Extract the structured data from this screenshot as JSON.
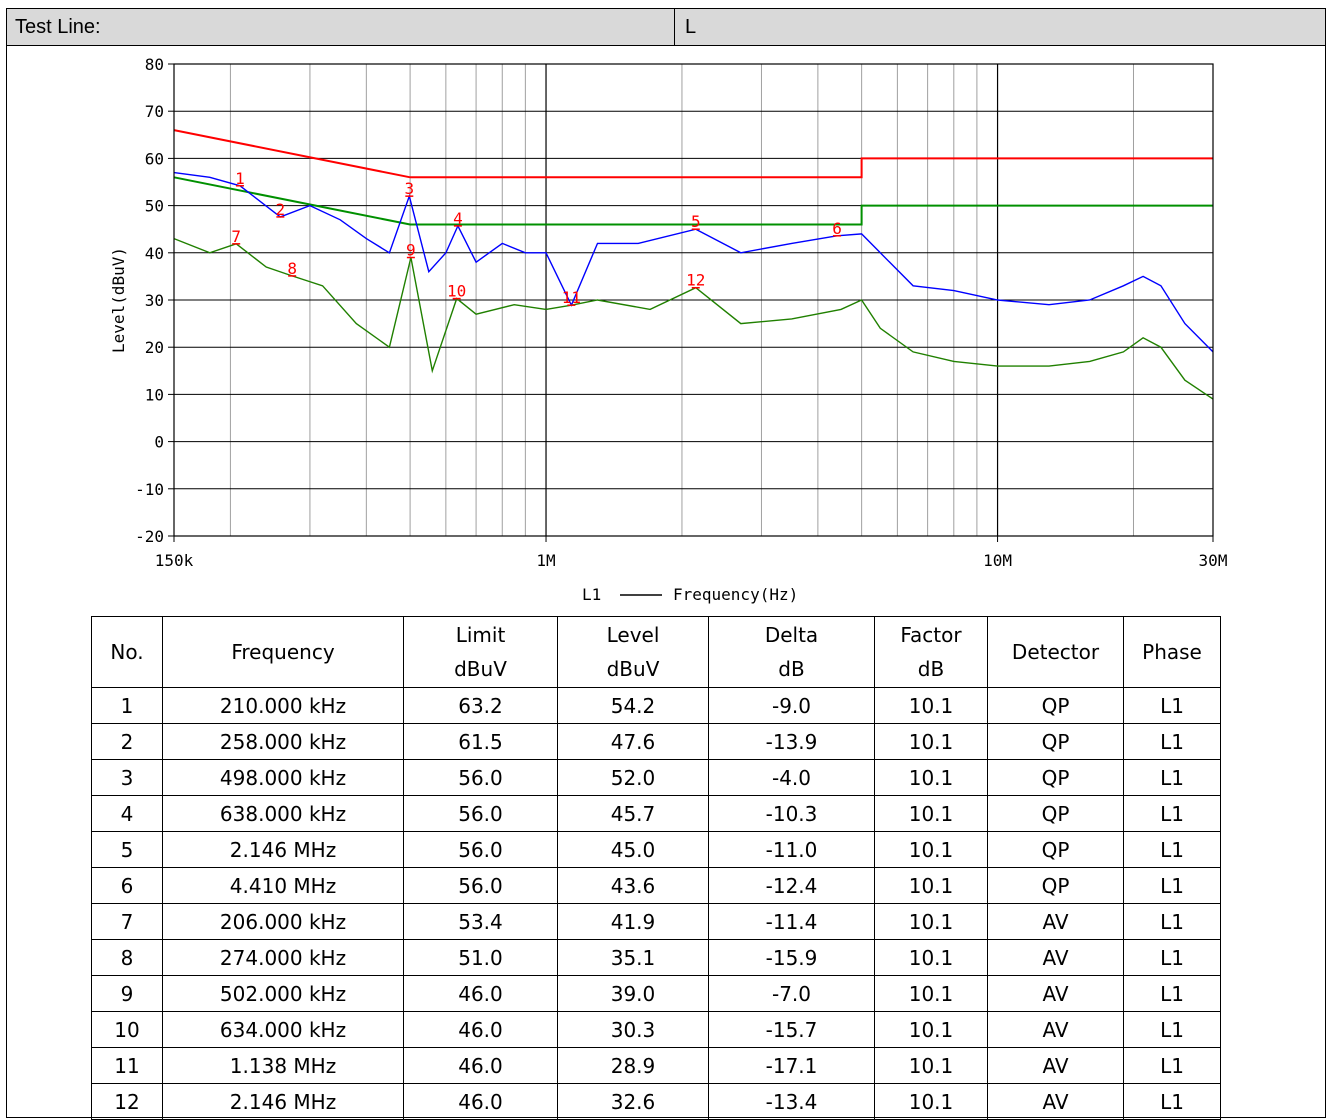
{
  "header": {
    "label": "Test Line:",
    "value": "L"
  },
  "chart_data": {
    "type": "line",
    "xscale": "log",
    "xlim": [
      150000,
      30000000
    ],
    "ylim": [
      -20,
      80
    ],
    "ylabel": "Level(dBuV)",
    "xlabel": "Frequency(Hz)",
    "legend_prefix": "L1",
    "x_ticks": [
      150000,
      1000000,
      10000000,
      30000000
    ],
    "x_tick_labels": [
      "150k",
      "1M",
      "10M",
      "30M"
    ],
    "y_ticks": [
      -20,
      -10,
      0,
      10,
      20,
      30,
      40,
      50,
      60,
      70,
      80
    ],
    "grid": true,
    "colors": {
      "qp_limit": "#ff0000",
      "av_limit": "#009000",
      "qp_trace": "#0000ff",
      "av_trace": "#208000",
      "marker": "#ff0000"
    },
    "series": [
      {
        "key": "qp_limit",
        "points": [
          [
            150000,
            66
          ],
          [
            500000,
            56
          ],
          [
            5000000,
            56
          ],
          [
            5000000,
            60
          ],
          [
            30000000,
            60
          ]
        ]
      },
      {
        "key": "av_limit",
        "points": [
          [
            150000,
            56
          ],
          [
            500000,
            46
          ],
          [
            5000000,
            46
          ],
          [
            5000000,
            50
          ],
          [
            30000000,
            50
          ]
        ]
      },
      {
        "key": "qp_trace",
        "points": [
          [
            150000,
            57
          ],
          [
            180000,
            56
          ],
          [
            210000,
            54.2
          ],
          [
            258000,
            47.6
          ],
          [
            300000,
            50
          ],
          [
            350000,
            47
          ],
          [
            400000,
            43
          ],
          [
            450000,
            40
          ],
          [
            498000,
            52
          ],
          [
            550000,
            36
          ],
          [
            600000,
            40
          ],
          [
            638000,
            45.7
          ],
          [
            700000,
            38
          ],
          [
            800000,
            42
          ],
          [
            900000,
            40
          ],
          [
            1000000,
            40
          ],
          [
            1138000,
            28.9
          ],
          [
            1300000,
            42
          ],
          [
            1600000,
            42
          ],
          [
            2146000,
            45
          ],
          [
            2700000,
            40
          ],
          [
            3500000,
            42
          ],
          [
            4410000,
            43.6
          ],
          [
            5000000,
            44
          ],
          [
            5500000,
            40
          ],
          [
            6500000,
            33
          ],
          [
            8000000,
            32
          ],
          [
            10000000,
            30
          ],
          [
            13000000,
            29
          ],
          [
            16000000,
            30
          ],
          [
            19000000,
            33
          ],
          [
            21000000,
            35
          ],
          [
            23000000,
            33
          ],
          [
            26000000,
            25
          ],
          [
            30000000,
            19
          ]
        ]
      },
      {
        "key": "av_trace",
        "points": [
          [
            150000,
            43
          ],
          [
            180000,
            40
          ],
          [
            206000,
            41.9
          ],
          [
            240000,
            37
          ],
          [
            274000,
            35.1
          ],
          [
            320000,
            33
          ],
          [
            380000,
            25
          ],
          [
            450000,
            20
          ],
          [
            502000,
            39
          ],
          [
            560000,
            15
          ],
          [
            634000,
            30.3
          ],
          [
            700000,
            27
          ],
          [
            850000,
            29
          ],
          [
            1000000,
            28
          ],
          [
            1138000,
            28.9
          ],
          [
            1300000,
            30
          ],
          [
            1700000,
            28
          ],
          [
            2146000,
            32.6
          ],
          [
            2700000,
            25
          ],
          [
            3500000,
            26
          ],
          [
            4500000,
            28
          ],
          [
            5000000,
            30
          ],
          [
            5500000,
            24
          ],
          [
            6500000,
            19
          ],
          [
            8000000,
            17
          ],
          [
            10000000,
            16
          ],
          [
            13000000,
            16
          ],
          [
            16000000,
            17
          ],
          [
            19000000,
            19
          ],
          [
            21000000,
            22
          ],
          [
            23000000,
            20
          ],
          [
            26000000,
            13
          ],
          [
            30000000,
            9
          ]
        ]
      }
    ],
    "markers": [
      {
        "label": "1",
        "freq": 210000,
        "level": 54.2
      },
      {
        "label": "2",
        "freq": 258000,
        "level": 47.6
      },
      {
        "label": "3",
        "freq": 498000,
        "level": 52.0
      },
      {
        "label": "4",
        "freq": 638000,
        "level": 45.7
      },
      {
        "label": "5",
        "freq": 2146000,
        "level": 45.0
      },
      {
        "label": "6",
        "freq": 4410000,
        "level": 43.6
      },
      {
        "label": "7",
        "freq": 206000,
        "level": 41.9
      },
      {
        "label": "8",
        "freq": 274000,
        "level": 35.1
      },
      {
        "label": "9",
        "freq": 502000,
        "level": 39.0
      },
      {
        "label": "10",
        "freq": 634000,
        "level": 30.3
      },
      {
        "label": "11",
        "freq": 1138000,
        "level": 28.9
      },
      {
        "label": "12",
        "freq": 2146000,
        "level": 32.6
      }
    ]
  },
  "table": {
    "columns": [
      "No.",
      "Frequency",
      "Limit\ndBuV",
      "Level\ndBuV",
      "Delta\ndB",
      "Factor\ndB",
      "Detector",
      "Phase"
    ],
    "rows": [
      [
        "1",
        "210.000 kHz",
        "63.2",
        "54.2",
        "-9.0",
        "10.1",
        "QP",
        "L1"
      ],
      [
        "2",
        "258.000 kHz",
        "61.5",
        "47.6",
        "-13.9",
        "10.1",
        "QP",
        "L1"
      ],
      [
        "3",
        "498.000 kHz",
        "56.0",
        "52.0",
        "-4.0",
        "10.1",
        "QP",
        "L1"
      ],
      [
        "4",
        "638.000 kHz",
        "56.0",
        "45.7",
        "-10.3",
        "10.1",
        "QP",
        "L1"
      ],
      [
        "5",
        "2.146 MHz",
        "56.0",
        "45.0",
        "-11.0",
        "10.1",
        "QP",
        "L1"
      ],
      [
        "6",
        "4.410 MHz",
        "56.0",
        "43.6",
        "-12.4",
        "10.1",
        "QP",
        "L1"
      ],
      [
        "7",
        "206.000 kHz",
        "53.4",
        "41.9",
        "-11.4",
        "10.1",
        "AV",
        "L1"
      ],
      [
        "8",
        "274.000 kHz",
        "51.0",
        "35.1",
        "-15.9",
        "10.1",
        "AV",
        "L1"
      ],
      [
        "9",
        "502.000 kHz",
        "46.0",
        "39.0",
        "-7.0",
        "10.1",
        "AV",
        "L1"
      ],
      [
        "10",
        "634.000 kHz",
        "46.0",
        "30.3",
        "-15.7",
        "10.1",
        "AV",
        "L1"
      ],
      [
        "11",
        "1.138 MHz",
        "46.0",
        "28.9",
        "-17.1",
        "10.1",
        "AV",
        "L1"
      ],
      [
        "12",
        "2.146 MHz",
        "46.0",
        "32.6",
        "-13.4",
        "10.1",
        "AV",
        "L1"
      ]
    ]
  }
}
